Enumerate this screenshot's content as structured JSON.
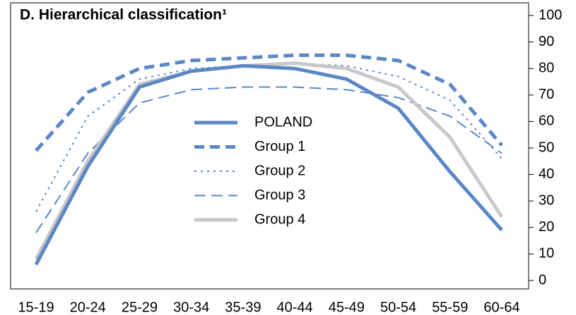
{
  "chart_data": {
    "type": "line",
    "title": "D. Hierarchical classification¹",
    "categories": [
      "15-19",
      "20-24",
      "25-29",
      "30-34",
      "35-39",
      "40-44",
      "45-49",
      "50-54",
      "55-59",
      "60-64"
    ],
    "series": [
      {
        "name": "POLAND",
        "color": "#5b87c5",
        "line_style": "solid",
        "weight": "thick",
        "values": [
          6,
          43,
          73,
          79,
          81,
          80,
          76,
          65,
          41,
          19
        ]
      },
      {
        "name": "Group 1",
        "color": "#5b87c5",
        "line_style": "dash",
        "weight": "thick",
        "values": [
          49,
          71,
          80,
          83,
          84,
          85,
          85,
          83,
          74,
          51
        ]
      },
      {
        "name": "Group 2",
        "color": "#5b87c5",
        "line_style": "dot",
        "weight": "thin",
        "values": [
          26,
          62,
          76,
          80,
          81,
          82,
          81,
          77,
          68,
          46
        ]
      },
      {
        "name": "Group 3",
        "color": "#5b87c5",
        "line_style": "dash",
        "weight": "thin",
        "values": [
          18,
          48,
          67,
          72,
          73,
          73,
          72,
          69,
          62,
          48
        ]
      },
      {
        "name": "Group 4",
        "color": "#c8c8c8",
        "line_style": "solid",
        "weight": "thick",
        "values": [
          8,
          45,
          74,
          79,
          81,
          82,
          80,
          73,
          54,
          24
        ]
      }
    ],
    "ylim": [
      0,
      100
    ],
    "yticks": [
      0,
      10,
      20,
      30,
      40,
      50,
      60,
      70,
      80,
      90,
      100
    ],
    "y_axis_side": "right"
  }
}
